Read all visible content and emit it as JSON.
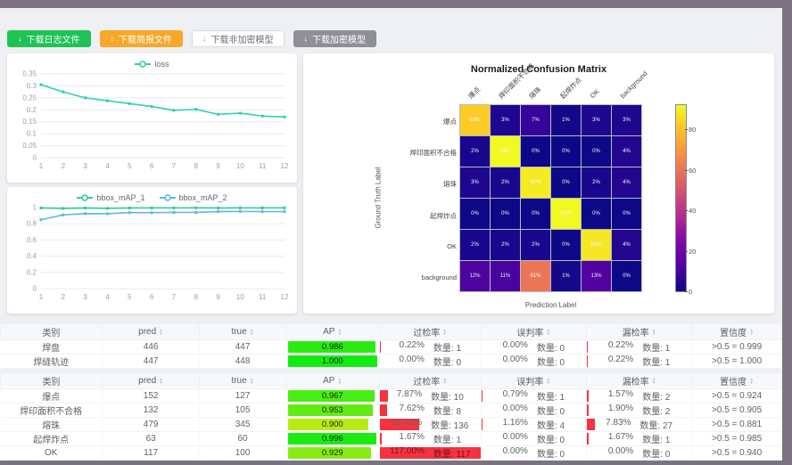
{
  "toolbar": {
    "buttons": [
      {
        "label": "下载日志文件",
        "variant": "green",
        "color": "#1dc355"
      },
      {
        "label": "下载简报文件",
        "variant": "orange",
        "color": "#f7a82a"
      },
      {
        "label": "下载非加密模型",
        "variant": "plain",
        "color": "#ffffff"
      },
      {
        "label": "下载加密模型",
        "variant": "gray",
        "color": "#8f8f98"
      }
    ],
    "download_icon": "↓"
  },
  "chart_data": [
    {
      "type": "line",
      "legend": [
        "loss"
      ],
      "x": [
        1,
        2,
        3,
        4,
        5,
        6,
        7,
        8,
        9,
        10,
        11,
        12
      ],
      "series": [
        {
          "name": "loss",
          "color": "#2ed1b0",
          "values": [
            0.305,
            0.275,
            0.25,
            0.238,
            0.226,
            0.214,
            0.198,
            0.202,
            0.181,
            0.186,
            0.174,
            0.17
          ]
        }
      ],
      "ylim": [
        0,
        0.35
      ],
      "yticks": [
        0,
        0.05,
        0.1,
        0.15,
        0.2,
        0.25,
        0.3,
        0.35
      ],
      "grid": true,
      "legend_position": "top"
    },
    {
      "type": "line",
      "legend": [
        "bbox_mAP_1",
        "bbox_mAP_2"
      ],
      "x": [
        1,
        2,
        3,
        4,
        5,
        6,
        7,
        8,
        9,
        10,
        11,
        12
      ],
      "series": [
        {
          "name": "bbox_mAP_1",
          "color": "#2ecf8e",
          "values": [
            0.995,
            0.99,
            0.995,
            0.99,
            0.995,
            0.996,
            0.996,
            0.997,
            0.995,
            0.996,
            0.996,
            0.996
          ]
        },
        {
          "name": "bbox_mAP_2",
          "color": "#64b5e8",
          "values": [
            0.85,
            0.91,
            0.925,
            0.924,
            0.938,
            0.937,
            0.94,
            0.94,
            0.95,
            0.952,
            0.95,
            0.95
          ]
        }
      ],
      "ylim": [
        0,
        1
      ],
      "yticks": [
        0,
        0.2,
        0.4,
        0.6,
        0.8,
        1
      ],
      "grid": true,
      "legend_position": "top"
    },
    {
      "type": "heatmap",
      "title": "Normalized Confusion Matrix",
      "xlabel": "Prediction Label",
      "ylabel": "Ground Truth Label",
      "labels": [
        "爆点",
        "焊印面积不合格",
        "熔珠",
        "起焊炸点",
        "OK",
        "background"
      ],
      "unit": "%",
      "vmax": 93,
      "colorbar_ticks": [
        0,
        20,
        40,
        60,
        80
      ],
      "matrix": [
        [
          83,
          3,
          7,
          1,
          3,
          3
        ],
        [
          2,
          93,
          0,
          0,
          0,
          4
        ],
        [
          3,
          2,
          90,
          0,
          2,
          4
        ],
        [
          0,
          0,
          0,
          93,
          0,
          0
        ],
        [
          2,
          2,
          2,
          0,
          89,
          4
        ],
        [
          12,
          11,
          61,
          1,
          13,
          0
        ]
      ]
    }
  ],
  "tables": {
    "count_label": "数量:",
    "headers": {
      "name": "类别",
      "pred": "pred",
      "true": "true",
      "ap": "AP",
      "over": "过检率",
      "mis": "误判率",
      "miss": "漏检率",
      "conf": "置信度"
    },
    "ap_bar_colors": {
      "high": "#0fe050",
      "low": "#bfe012"
    },
    "rate_bar_color": "#f8323f",
    "groups": [
      {
        "rows": [
          {
            "name": "焊盘",
            "pred": "446",
            "true": "447",
            "ap": 0.986,
            "over": {
              "pct": 0.22,
              "count": 1
            },
            "mis": {
              "pct": 0.0,
              "count": 0
            },
            "miss": {
              "pct": 0.22,
              "count": 1
            },
            "conf": ">0.5 = 0.999"
          },
          {
            "name": "焊缝轨迹",
            "pred": "447",
            "true": "448",
            "ap": 1.0,
            "over": {
              "pct": 0.0,
              "count": 0
            },
            "mis": {
              "pct": 0.0,
              "count": 0
            },
            "miss": {
              "pct": 0.22,
              "count": 1
            },
            "conf": ">0.5 = 1.000"
          }
        ]
      },
      {
        "rows": [
          {
            "name": "爆点",
            "pred": "152",
            "true": "127",
            "ap": 0.967,
            "over": {
              "pct": 7.87,
              "count": 10
            },
            "mis": {
              "pct": 0.79,
              "count": 1
            },
            "miss": {
              "pct": 1.57,
              "count": 2
            },
            "conf": ">0.5 = 0.924"
          },
          {
            "name": "焊印面积不合格",
            "pred": "132",
            "true": "105",
            "ap": 0.953,
            "over": {
              "pct": 7.62,
              "count": 8
            },
            "mis": {
              "pct": 0.0,
              "count": 0
            },
            "miss": {
              "pct": 1.9,
              "count": 2
            },
            "conf": ">0.5 = 0.905"
          },
          {
            "name": "熔珠",
            "pred": "479",
            "true": "345",
            "ap": 0.9,
            "over": {
              "pct": 39.42,
              "count": 136
            },
            "mis": {
              "pct": 1.16,
              "count": 4
            },
            "miss": {
              "pct": 7.83,
              "count": 27
            },
            "conf": ">0.5 = 0.881"
          },
          {
            "name": "起焊炸点",
            "pred": "63",
            "true": "60",
            "ap": 0.996,
            "over": {
              "pct": 1.67,
              "count": 1
            },
            "mis": {
              "pct": 0.0,
              "count": 0
            },
            "miss": {
              "pct": 1.67,
              "count": 1
            },
            "conf": ">0.5 = 0.985"
          },
          {
            "name": "OK",
            "pred": "117",
            "true": "100",
            "ap": 0.929,
            "over": {
              "pct": 117.0,
              "count": 117
            },
            "mis": {
              "pct": 0.0,
              "count": 0
            },
            "miss": {
              "pct": 0.0,
              "count": 0
            },
            "conf": ">0.5 = 0.940"
          }
        ]
      }
    ]
  },
  "frame": {
    "border_color": "#7b7480",
    "page_bg": "#eef0f3"
  }
}
